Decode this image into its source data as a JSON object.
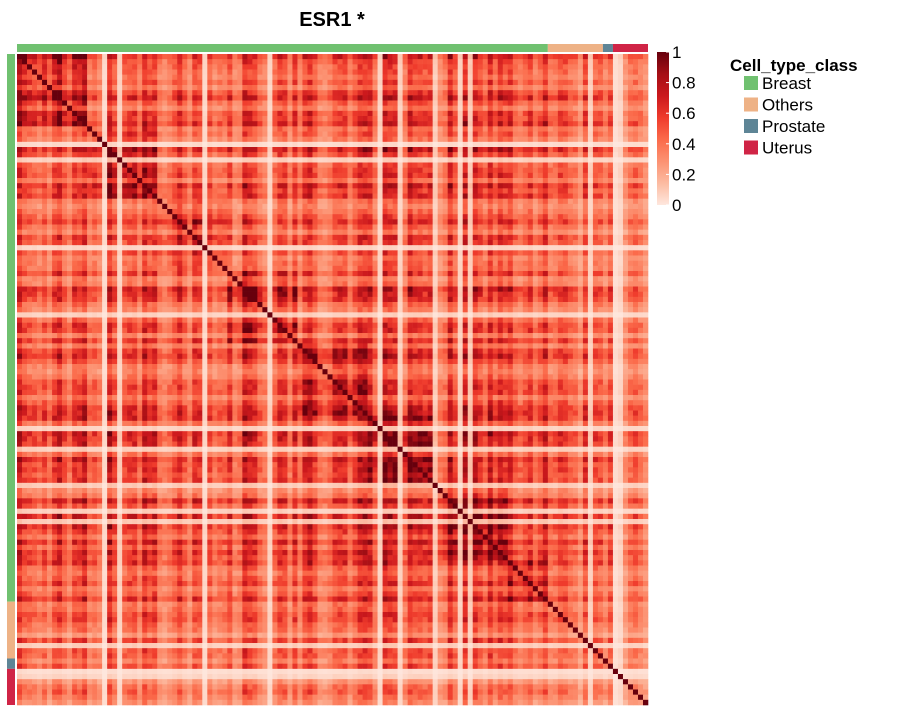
{
  "chart_data": {
    "type": "heatmap",
    "title": "ESR1 *",
    "n": 126,
    "colorbar": {
      "ticks": [
        0,
        0.2,
        0.4,
        0.6,
        0.8,
        1
      ],
      "tick_labels": [
        "0",
        "0.2",
        "0.4",
        "0.6",
        "0.8",
        "1"
      ],
      "colors": [
        "#FEE7DE",
        "#FCBBA1",
        "#FC9272",
        "#FB6A4A",
        "#EF3B2C",
        "#CB181D",
        "#A50F15",
        "#67000D"
      ]
    },
    "annotation": {
      "title": "Cell_type_class",
      "classes": [
        {
          "name": "Breast",
          "color": "#70C170",
          "count": 106
        },
        {
          "name": "Others",
          "color": "#EEB286",
          "count": 11
        },
        {
          "name": "Prostate",
          "color": "#5E8596",
          "count": 2
        },
        {
          "name": "Uterus",
          "color": "#D02446",
          "count": 7
        }
      ],
      "legend_position": "right"
    },
    "diagonal_value": 1
  }
}
